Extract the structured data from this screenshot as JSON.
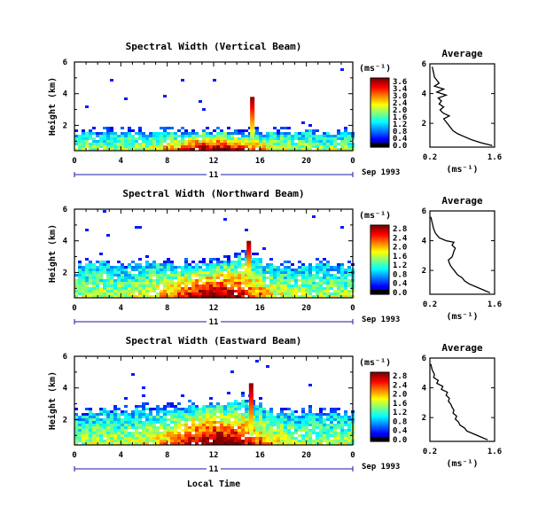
{
  "chart_data": [
    {
      "type": "heatmap",
      "title": "Spectral Width (Vertical Beam)",
      "ylabel": "Height (km)",
      "x_ticks": [
        "0",
        "4",
        "8",
        "12",
        "16",
        "20",
        "0"
      ],
      "y_ticks": [
        "2",
        "4",
        "6"
      ],
      "xlim": [
        0,
        24
      ],
      "ylim": [
        0.4,
        6.0
      ],
      "day_label": "11",
      "month_label": "Sep 1993",
      "colorbar": {
        "label": "(ms⁻¹)",
        "ticks": [
          "3.6",
          "3.4",
          "3.0",
          "2.4",
          "2.0",
          "1.6",
          "1.2",
          "0.8",
          "0.4",
          "0.0"
        ],
        "range": [
          0,
          3.6
        ]
      },
      "layer_top_km": [
        1.6,
        1.6,
        1.6,
        1.65,
        1.65,
        1.6,
        1.6,
        1.65,
        1.6,
        1.6,
        1.6,
        1.65,
        1.7,
        1.7,
        1.6,
        1.6,
        1.65,
        1.6,
        1.6,
        1.6,
        1.65,
        1.6,
        1.6,
        1.6,
        1.6
      ],
      "spike": {
        "x": 15.3,
        "from_km": 1.2,
        "to_km": 3.8
      },
      "average_profile": {
        "title": "Average",
        "xlabel": "(ms⁻¹)",
        "x_ticks": [
          "0.2",
          "1.6"
        ],
        "y_ticks": [
          "2",
          "4",
          "6"
        ],
        "xlim": [
          0.2,
          1.6
        ],
        "ylim": [
          0.4,
          6.0
        ],
        "points": [
          [
            1.55,
            0.5
          ],
          [
            1.3,
            0.7
          ],
          [
            1.1,
            0.9
          ],
          [
            0.95,
            1.1
          ],
          [
            0.8,
            1.3
          ],
          [
            0.7,
            1.5
          ],
          [
            0.65,
            1.7
          ],
          [
            0.6,
            1.9
          ],
          [
            0.55,
            2.1
          ],
          [
            0.5,
            2.3
          ],
          [
            0.62,
            2.5
          ],
          [
            0.48,
            2.7
          ],
          [
            0.42,
            2.9
          ],
          [
            0.5,
            3.1
          ],
          [
            0.4,
            3.3
          ],
          [
            0.45,
            3.5
          ],
          [
            0.38,
            3.7
          ],
          [
            0.55,
            3.9
          ],
          [
            0.35,
            4.1
          ],
          [
            0.5,
            4.3
          ],
          [
            0.3,
            4.5
          ],
          [
            0.4,
            4.7
          ],
          [
            0.35,
            4.9
          ],
          [
            0.3,
            5.1
          ],
          [
            0.28,
            5.4
          ],
          [
            0.25,
            5.8
          ]
        ]
      }
    },
    {
      "type": "heatmap",
      "title": "Spectral Width (Northward Beam)",
      "ylabel": "Height (km)",
      "x_ticks": [
        "0",
        "4",
        "8",
        "12",
        "16",
        "20",
        "0"
      ],
      "y_ticks": [
        "2",
        "4",
        "6"
      ],
      "xlim": [
        0,
        24
      ],
      "ylim": [
        0.4,
        6.0
      ],
      "day_label": "11",
      "month_label": "Sep 1993",
      "colorbar": {
        "label": "(ms⁻¹)",
        "ticks": [
          "2.8",
          "2.4",
          "2.0",
          "1.6",
          "1.2",
          "0.8",
          "0.4",
          "0.0"
        ],
        "range": [
          0,
          2.8
        ]
      },
      "layer_top_km": [
        2.5,
        2.7,
        2.8,
        2.6,
        2.5,
        2.6,
        2.7,
        2.7,
        2.6,
        2.5,
        2.6,
        2.7,
        2.8,
        2.9,
        3.2,
        3.0,
        2.6,
        2.5,
        2.4,
        2.5,
        2.6,
        2.5,
        2.5,
        2.4,
        2.5
      ],
      "spike": {
        "x": 15.0,
        "from_km": 1.8,
        "to_km": 4.0
      },
      "average_profile": {
        "title": "Average",
        "xlabel": "(ms⁻¹)",
        "x_ticks": [
          "0.2",
          "1.6"
        ],
        "y_ticks": [
          "2",
          "4",
          "6"
        ],
        "xlim": [
          0.2,
          1.6
        ],
        "ylim": [
          0.4,
          6.0
        ],
        "points": [
          [
            1.5,
            0.5
          ],
          [
            1.35,
            0.7
          ],
          [
            1.2,
            0.9
          ],
          [
            1.05,
            1.1
          ],
          [
            0.95,
            1.3
          ],
          [
            0.9,
            1.5
          ],
          [
            0.8,
            1.7
          ],
          [
            0.75,
            1.9
          ],
          [
            0.7,
            2.1
          ],
          [
            0.65,
            2.3
          ],
          [
            0.62,
            2.5
          ],
          [
            0.6,
            2.7
          ],
          [
            0.68,
            2.9
          ],
          [
            0.7,
            3.1
          ],
          [
            0.72,
            3.3
          ],
          [
            0.75,
            3.5
          ],
          [
            0.68,
            3.7
          ],
          [
            0.72,
            3.9
          ],
          [
            0.55,
            4.0
          ],
          [
            0.4,
            4.2
          ],
          [
            0.32,
            4.5
          ],
          [
            0.28,
            4.8
          ],
          [
            0.25,
            5.2
          ],
          [
            0.22,
            5.6
          ]
        ]
      }
    },
    {
      "type": "heatmap",
      "title": "Spectral Width (Eastward Beam)",
      "ylabel": "Height (km)",
      "x_ticks": [
        "0",
        "4",
        "8",
        "12",
        "16",
        "20",
        "0"
      ],
      "y_ticks": [
        "2",
        "4",
        "6"
      ],
      "xlim": [
        0,
        24
      ],
      "ylim": [
        0.4,
        6.0
      ],
      "day_label": "11",
      "month_label": "Sep 1993",
      "xlabel": "Local Time",
      "colorbar": {
        "label": "(ms⁻¹)",
        "ticks": [
          "2.8",
          "2.4",
          "2.0",
          "1.6",
          "1.2",
          "0.8",
          "0.4",
          "0.0"
        ],
        "range": [
          0,
          2.8
        ]
      },
      "layer_top_km": [
        2.5,
        2.6,
        2.7,
        2.6,
        2.6,
        2.7,
        2.8,
        2.8,
        2.7,
        2.8,
        2.9,
        3.0,
        3.1,
        3.2,
        3.3,
        3.0,
        2.8,
        2.6,
        2.5,
        2.5,
        2.6,
        2.5,
        2.5,
        2.5,
        2.5
      ],
      "spike": {
        "x": 15.2,
        "from_km": 1.0,
        "to_km": 4.3
      },
      "average_profile": {
        "title": "Average",
        "xlabel": "(ms⁻¹)",
        "x_ticks": [
          "0.2",
          "1.6"
        ],
        "y_ticks": [
          "2",
          "4",
          "6"
        ],
        "xlim": [
          0.2,
          1.6
        ],
        "ylim": [
          0.4,
          6.0
        ],
        "points": [
          [
            1.45,
            0.5
          ],
          [
            1.3,
            0.7
          ],
          [
            1.15,
            0.9
          ],
          [
            1.0,
            1.1
          ],
          [
            0.95,
            1.3
          ],
          [
            0.85,
            1.5
          ],
          [
            0.82,
            1.7
          ],
          [
            0.75,
            1.9
          ],
          [
            0.78,
            2.1
          ],
          [
            0.7,
            2.3
          ],
          [
            0.72,
            2.5
          ],
          [
            0.68,
            2.7
          ],
          [
            0.65,
            2.9
          ],
          [
            0.6,
            3.1
          ],
          [
            0.62,
            3.3
          ],
          [
            0.55,
            3.5
          ],
          [
            0.58,
            3.7
          ],
          [
            0.45,
            3.9
          ],
          [
            0.48,
            4.1
          ],
          [
            0.35,
            4.3
          ],
          [
            0.38,
            4.5
          ],
          [
            0.28,
            4.7
          ],
          [
            0.3,
            4.9
          ],
          [
            0.25,
            5.2
          ],
          [
            0.22,
            5.6
          ]
        ]
      }
    }
  ]
}
